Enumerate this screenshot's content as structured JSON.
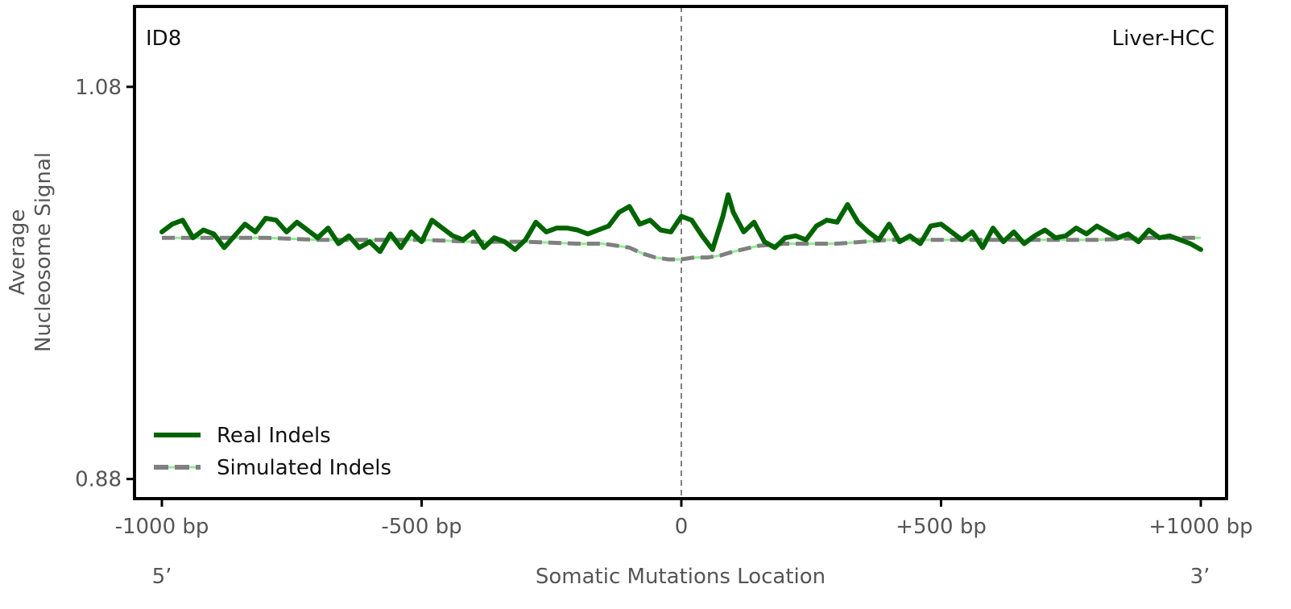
{
  "chart_data": {
    "type": "line",
    "panel_label_left": "ID8",
    "panel_label_right": "Liver-HCC",
    "xlabel": "Somatic Mutations Location",
    "ylabel_line1": "Average",
    "ylabel_line2": "Nucleosome Signal",
    "end_label_left": "5’",
    "end_label_right": "3’",
    "xlim": [
      -1000,
      1000
    ],
    "ylim": [
      0.87,
      1.121
    ],
    "x_ticks": [
      {
        "value": -1000,
        "label": "-1000 bp"
      },
      {
        "value": -500,
        "label": "-500 bp"
      },
      {
        "value": 0,
        "label": "0"
      },
      {
        "value": 500,
        "label": "+500 bp"
      },
      {
        "value": 1000,
        "label": "+1000 bp"
      }
    ],
    "y_ticks": [
      {
        "value": 1.08,
        "label": "1.08"
      },
      {
        "value": 0.88,
        "label": "0.88"
      }
    ],
    "vline_x": 0,
    "grid": false,
    "legend_position": "lower-left",
    "series": [
      {
        "name": "Real Indels",
        "style": "solid",
        "color": "#006400",
        "x": [
          -1000,
          -980,
          -960,
          -940,
          -920,
          -900,
          -880,
          -860,
          -840,
          -820,
          -800,
          -780,
          -760,
          -740,
          -720,
          -700,
          -680,
          -660,
          -640,
          -620,
          -600,
          -580,
          -560,
          -540,
          -520,
          -500,
          -480,
          -460,
          -440,
          -420,
          -400,
          -380,
          -360,
          -340,
          -320,
          -300,
          -280,
          -260,
          -240,
          -220,
          -200,
          -180,
          -160,
          -140,
          -120,
          -100,
          -80,
          -60,
          -40,
          -20,
          0,
          20,
          40,
          60,
          80,
          90,
          100,
          120,
          140,
          160,
          180,
          200,
          220,
          240,
          260,
          280,
          300,
          320,
          340,
          360,
          380,
          400,
          420,
          440,
          460,
          480,
          500,
          520,
          540,
          560,
          580,
          600,
          620,
          640,
          660,
          680,
          700,
          720,
          740,
          760,
          780,
          800,
          820,
          840,
          860,
          880,
          900,
          920,
          940,
          960,
          980,
          1000
        ],
        "y": [
          1.006,
          1.01,
          1.012,
          1.003,
          1.007,
          1.005,
          0.998,
          1.004,
          1.01,
          1.006,
          1.013,
          1.012,
          1.006,
          1.011,
          1.007,
          1.003,
          1.008,
          1.0,
          1.004,
          0.998,
          1.001,
          0.996,
          1.005,
          0.998,
          1.006,
          1.001,
          1.012,
          1.008,
          1.004,
          1.002,
          1.006,
          0.998,
          1.003,
          1.001,
          0.997,
          1.002,
          1.011,
          1.006,
          1.008,
          1.008,
          1.007,
          1.005,
          1.007,
          1.009,
          1.016,
          1.019,
          1.01,
          1.012,
          1.007,
          1.006,
          1.014,
          1.012,
          1.004,
          0.997,
          1.014,
          1.025,
          1.016,
          1.006,
          1.011,
          1.001,
          0.998,
          1.003,
          1.004,
          1.002,
          1.009,
          1.012,
          1.011,
          1.02,
          1.011,
          1.006,
          1.002,
          1.01,
          1.001,
          1.004,
          1.0,
          1.009,
          1.01,
          1.006,
          1.002,
          1.006,
          0.998,
          1.008,
          1.001,
          1.006,
          1.0,
          1.004,
          1.007,
          1.003,
          1.004,
          1.008,
          1.005,
          1.009,
          1.006,
          1.003,
          1.005,
          1.001,
          1.007,
          1.003,
          1.004,
          1.002,
          1.0,
          0.997
        ]
      },
      {
        "name": "Simulated Indels",
        "style": "dashed",
        "color": "#808080",
        "color_underlay": "#90ee90",
        "x": [
          -1000,
          -900,
          -800,
          -700,
          -600,
          -500,
          -400,
          -300,
          -200,
          -150,
          -100,
          -75,
          -50,
          -25,
          0,
          25,
          50,
          75,
          100,
          150,
          200,
          250,
          300,
          350,
          400,
          500,
          600,
          700,
          800,
          900,
          1000
        ],
        "y": [
          1.003,
          1.003,
          1.003,
          1.002,
          1.002,
          1.002,
          1.001,
          1.001,
          1.0,
          1.0,
          0.998,
          0.995,
          0.993,
          0.992,
          0.992,
          0.993,
          0.993,
          0.994,
          0.996,
          0.999,
          1.0,
          1.0,
          1.0,
          1.001,
          1.002,
          1.002,
          1.002,
          1.002,
          1.002,
          1.003,
          1.003
        ]
      }
    ]
  }
}
